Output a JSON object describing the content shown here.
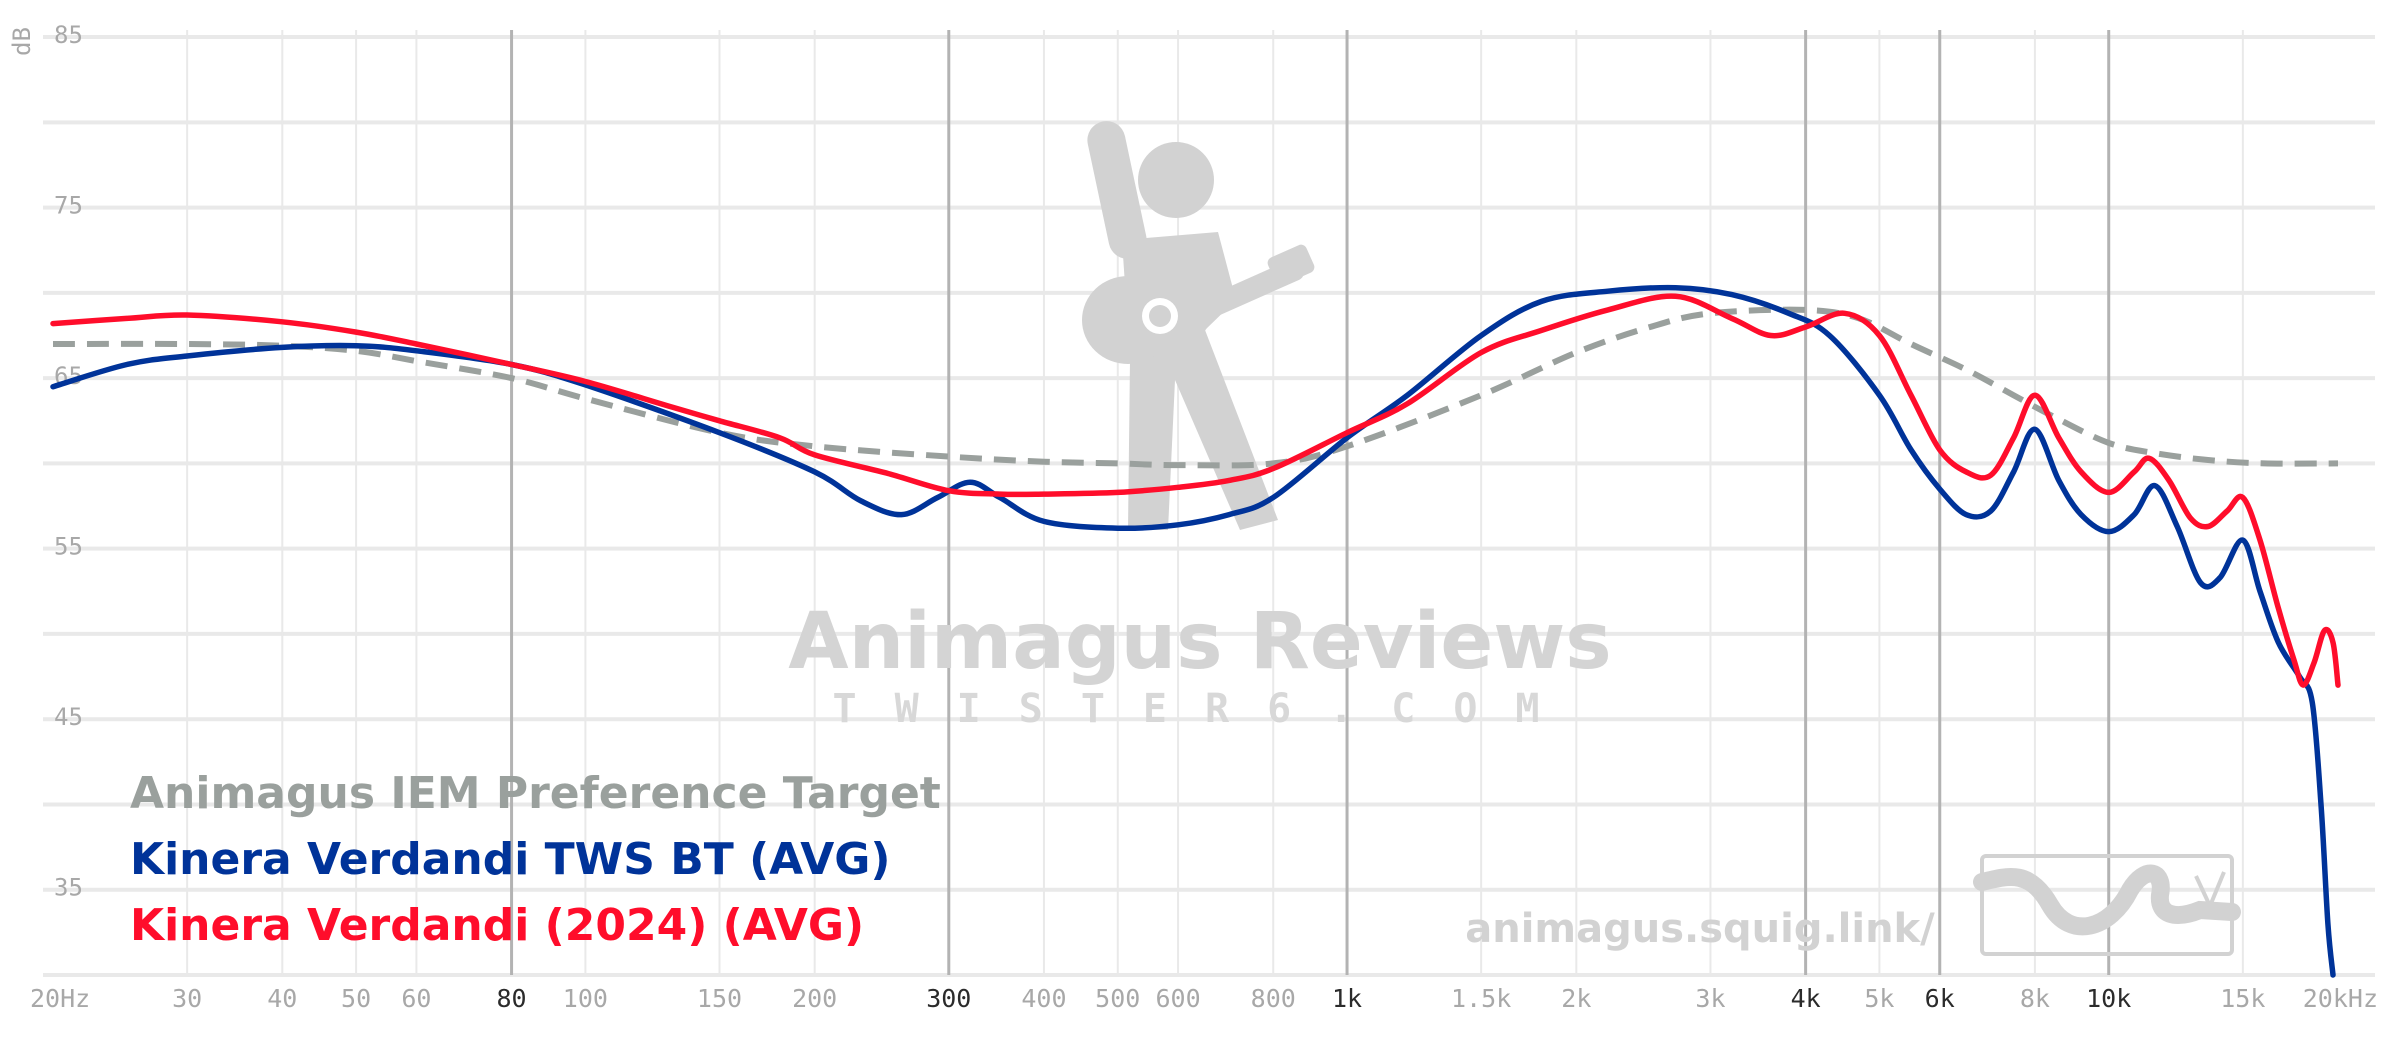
{
  "chart_data": {
    "type": "line",
    "ylabel": "dB",
    "x_scale": "log",
    "xlim": [
      20,
      20000
    ],
    "ylim": [
      30,
      86
    ],
    "grid": true,
    "legend_placement": "bottom-left",
    "y_ticks": [
      35,
      45,
      55,
      65,
      75,
      85
    ],
    "x_ticks": [
      {
        "value": 20,
        "label": "20Hz",
        "major": false
      },
      {
        "value": 30,
        "label": "30",
        "major": false
      },
      {
        "value": 40,
        "label": "40",
        "major": false
      },
      {
        "value": 50,
        "label": "50",
        "major": false
      },
      {
        "value": 60,
        "label": "60",
        "major": false
      },
      {
        "value": 80,
        "label": "80",
        "major": true
      },
      {
        "value": 100,
        "label": "100",
        "major": false
      },
      {
        "value": 150,
        "label": "150",
        "major": false
      },
      {
        "value": 200,
        "label": "200",
        "major": false
      },
      {
        "value": 300,
        "label": "300",
        "major": true
      },
      {
        "value": 400,
        "label": "400",
        "major": false
      },
      {
        "value": 500,
        "label": "500",
        "major": false
      },
      {
        "value": 600,
        "label": "600",
        "major": false
      },
      {
        "value": 800,
        "label": "800",
        "major": false
      },
      {
        "value": 1000,
        "label": "1k",
        "major": true
      },
      {
        "value": 1500,
        "label": "1.5k",
        "major": false
      },
      {
        "value": 2000,
        "label": "2k",
        "major": false
      },
      {
        "value": 3000,
        "label": "3k",
        "major": false
      },
      {
        "value": 4000,
        "label": "4k",
        "major": true
      },
      {
        "value": 5000,
        "label": "5k",
        "major": false
      },
      {
        "value": 6000,
        "label": "6k",
        "major": true
      },
      {
        "value": 8000,
        "label": "8k",
        "major": false
      },
      {
        "value": 10000,
        "label": "10k",
        "major": true
      },
      {
        "value": 15000,
        "label": "15k",
        "major": false
      },
      {
        "value": 20000,
        "label": "20kHz",
        "major": false
      }
    ],
    "series": [
      {
        "name": "Animagus IEM Preference Target",
        "color": "#9aa09d",
        "dashed": true,
        "points": [
          [
            20,
            67.0
          ],
          [
            30,
            67.0
          ],
          [
            40,
            66.9
          ],
          [
            50,
            66.6
          ],
          [
            60,
            66.0
          ],
          [
            80,
            65.0
          ],
          [
            100,
            63.8
          ],
          [
            150,
            61.8
          ],
          [
            200,
            61.0
          ],
          [
            300,
            60.4
          ],
          [
            400,
            60.1
          ],
          [
            500,
            60.0
          ],
          [
            600,
            59.9
          ],
          [
            800,
            60.0
          ],
          [
            1000,
            61.0
          ],
          [
            1500,
            64.0
          ],
          [
            2000,
            66.5
          ],
          [
            2500,
            68.0
          ],
          [
            3000,
            68.8
          ],
          [
            4000,
            69.0
          ],
          [
            4700,
            68.5
          ],
          [
            5500,
            67.0
          ],
          [
            6500,
            65.5
          ],
          [
            7500,
            64.0
          ],
          [
            8500,
            62.7
          ],
          [
            10000,
            61.2
          ],
          [
            11500,
            60.6
          ],
          [
            13500,
            60.2
          ],
          [
            16000,
            60.0
          ],
          [
            20000,
            60.0
          ]
        ]
      },
      {
        "name": "Kinera Verdandi TWS BT (AVG)",
        "color": "#003399",
        "dashed": false,
        "points": [
          [
            20,
            64.5
          ],
          [
            25,
            65.8
          ],
          [
            30,
            66.3
          ],
          [
            40,
            66.8
          ],
          [
            50,
            66.9
          ],
          [
            60,
            66.6
          ],
          [
            80,
            65.8
          ],
          [
            100,
            64.6
          ],
          [
            150,
            61.8
          ],
          [
            200,
            59.5
          ],
          [
            230,
            57.8
          ],
          [
            260,
            57.0
          ],
          [
            290,
            58.0
          ],
          [
            320,
            58.9
          ],
          [
            350,
            58.0
          ],
          [
            400,
            56.6
          ],
          [
            500,
            56.2
          ],
          [
            600,
            56.4
          ],
          [
            700,
            57.0
          ],
          [
            800,
            58.0
          ],
          [
            1000,
            61.5
          ],
          [
            1200,
            64.0
          ],
          [
            1500,
            67.5
          ],
          [
            1800,
            69.5
          ],
          [
            2200,
            70.1
          ],
          [
            2700,
            70.3
          ],
          [
            3200,
            69.9
          ],
          [
            3800,
            68.8
          ],
          [
            4300,
            67.5
          ],
          [
            5000,
            64.0
          ],
          [
            5500,
            60.8
          ],
          [
            6000,
            58.5
          ],
          [
            6500,
            57.0
          ],
          [
            7000,
            57.2
          ],
          [
            7500,
            59.5
          ],
          [
            8000,
            62.0
          ],
          [
            8600,
            59.0
          ],
          [
            9200,
            57.0
          ],
          [
            10000,
            56.0
          ],
          [
            10800,
            57.0
          ],
          [
            11500,
            58.7
          ],
          [
            12300,
            56.3
          ],
          [
            13200,
            53.0
          ],
          [
            14000,
            53.3
          ],
          [
            15000,
            55.5
          ],
          [
            15800,
            52.5
          ],
          [
            16700,
            49.5
          ],
          [
            17800,
            47.5
          ],
          [
            18500,
            46.0
          ],
          [
            19000,
            40.0
          ],
          [
            19400,
            33.0
          ],
          [
            19700,
            30.0
          ]
        ]
      },
      {
        "name": "Kinera Verdandi (2024) (AVG)",
        "color": "#ff0d2b",
        "dashed": false,
        "points": [
          [
            20,
            68.2
          ],
          [
            25,
            68.5
          ],
          [
            30,
            68.7
          ],
          [
            40,
            68.3
          ],
          [
            50,
            67.7
          ],
          [
            60,
            67.0
          ],
          [
            80,
            65.8
          ],
          [
            100,
            64.8
          ],
          [
            130,
            63.3
          ],
          [
            150,
            62.5
          ],
          [
            180,
            61.5
          ],
          [
            200,
            60.5
          ],
          [
            250,
            59.4
          ],
          [
            300,
            58.4
          ],
          [
            350,
            58.2
          ],
          [
            400,
            58.2
          ],
          [
            500,
            58.3
          ],
          [
            600,
            58.6
          ],
          [
            700,
            59.0
          ],
          [
            800,
            59.7
          ],
          [
            1000,
            61.8
          ],
          [
            1200,
            63.5
          ],
          [
            1500,
            66.5
          ],
          [
            1800,
            67.8
          ],
          [
            2200,
            69.0
          ],
          [
            2700,
            69.8
          ],
          [
            3200,
            68.5
          ],
          [
            3600,
            67.5
          ],
          [
            4000,
            68.0
          ],
          [
            4500,
            68.8
          ],
          [
            5000,
            67.5
          ],
          [
            5500,
            64.0
          ],
          [
            6000,
            60.8
          ],
          [
            6500,
            59.5
          ],
          [
            7000,
            59.3
          ],
          [
            7500,
            61.5
          ],
          [
            8000,
            64.0
          ],
          [
            8600,
            61.5
          ],
          [
            9200,
            59.5
          ],
          [
            10000,
            58.3
          ],
          [
            10800,
            59.5
          ],
          [
            11300,
            60.3
          ],
          [
            12000,
            59.0
          ],
          [
            12800,
            56.8
          ],
          [
            13500,
            56.3
          ],
          [
            14300,
            57.2
          ],
          [
            15000,
            58.0
          ],
          [
            15800,
            55.5
          ],
          [
            16700,
            51.5
          ],
          [
            17500,
            48.5
          ],
          [
            18000,
            47.0
          ],
          [
            18600,
            48.3
          ],
          [
            19200,
            50.2
          ],
          [
            19700,
            49.5
          ],
          [
            20000,
            47.0
          ]
        ]
      }
    ]
  },
  "legend": [
    "Animagus IEM Preference Target",
    "Kinera Verdandi TWS BT (AVG)",
    "Kinera Verdandi (2024) (AVG)"
  ],
  "watermark": {
    "title": "Animagus Reviews",
    "subtitle": "TWISTER6.COM",
    "url": "animagus.squig.link/"
  },
  "colors": {
    "target": "#9aa09d",
    "tws": "#003399",
    "v2024": "#ff0d2b",
    "grid": "#e9e9e9",
    "grid_major": "#b3b3b3"
  }
}
